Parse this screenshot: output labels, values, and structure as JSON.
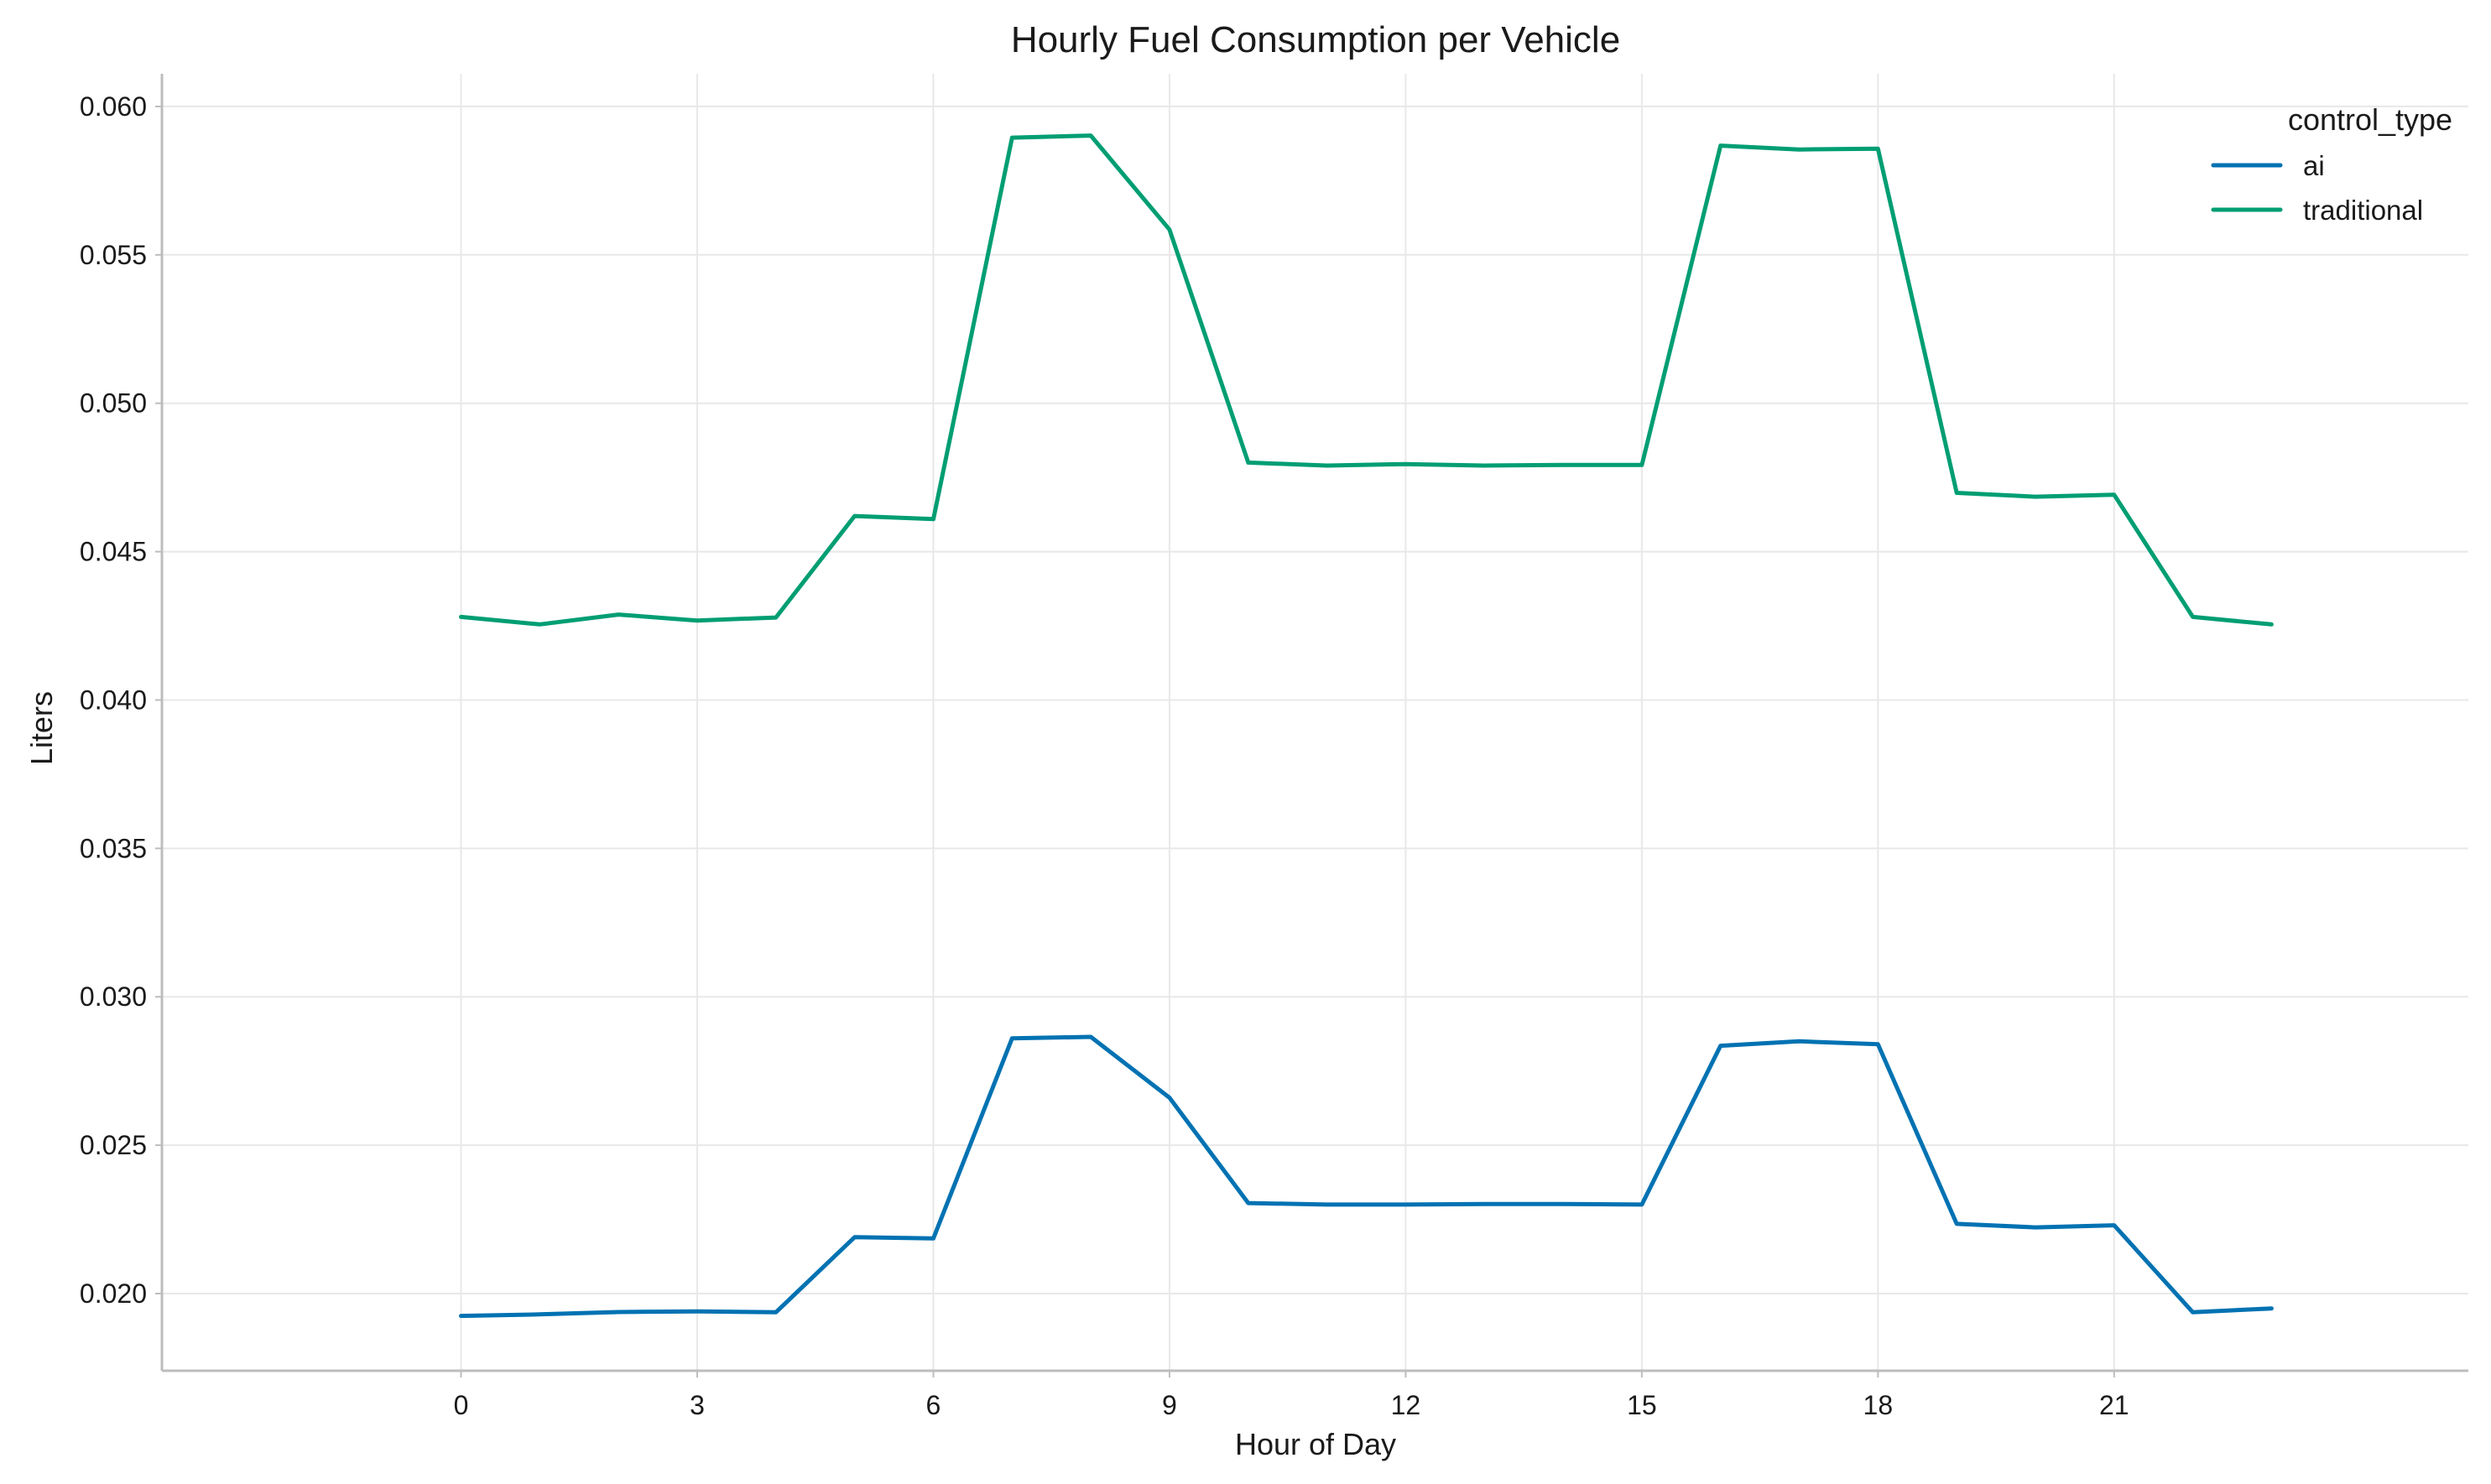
{
  "chart_data": {
    "type": "line",
    "title": "Hourly Fuel Consumption per Vehicle",
    "xlabel": "Hour of Day",
    "ylabel": "Liters",
    "x": [
      0,
      1,
      2,
      3,
      4,
      5,
      6,
      7,
      8,
      9,
      10,
      11,
      12,
      13,
      14,
      15,
      16,
      17,
      18,
      19,
      20,
      21,
      22,
      23
    ],
    "xlim": [
      -3.8,
      25.5
    ],
    "ylim": [
      0.0174,
      0.0611
    ],
    "x_ticks": [
      0,
      3,
      6,
      9,
      12,
      15,
      18,
      21
    ],
    "x_tick_labels": [
      "0",
      "3",
      "6",
      "9",
      "12",
      "15",
      "18",
      "21"
    ],
    "y_ticks": [
      0.02,
      0.025,
      0.03,
      0.035,
      0.04,
      0.045,
      0.05,
      0.055,
      0.06
    ],
    "y_tick_labels": [
      "0.020",
      "0.025",
      "0.030",
      "0.035",
      "0.040",
      "0.045",
      "0.050",
      "0.055",
      "0.060"
    ],
    "grid": true,
    "legend": {
      "title": "control_type",
      "placement": "top-right"
    },
    "series": [
      {
        "name": "ai",
        "color": "#0072b2",
        "values": [
          0.01925,
          0.0193,
          0.01938,
          0.0194,
          0.01937,
          0.0219,
          0.02186,
          0.0286,
          0.02865,
          0.0266,
          0.02305,
          0.023,
          0.023,
          0.02302,
          0.02302,
          0.023,
          0.02835,
          0.0285,
          0.0284,
          0.02235,
          0.02223,
          0.0223,
          0.01937,
          0.0195
        ]
      },
      {
        "name": "traditional",
        "color": "#009e73",
        "values": [
          0.0428,
          0.04255,
          0.04288,
          0.04268,
          0.04278,
          0.0462,
          0.0461,
          0.05895,
          0.05902,
          0.05585,
          0.048,
          0.0479,
          0.04795,
          0.0479,
          0.04792,
          0.04792,
          0.05868,
          0.05855,
          0.05858,
          0.04698,
          0.04685,
          0.04692,
          0.0428,
          0.04255
        ]
      }
    ]
  }
}
